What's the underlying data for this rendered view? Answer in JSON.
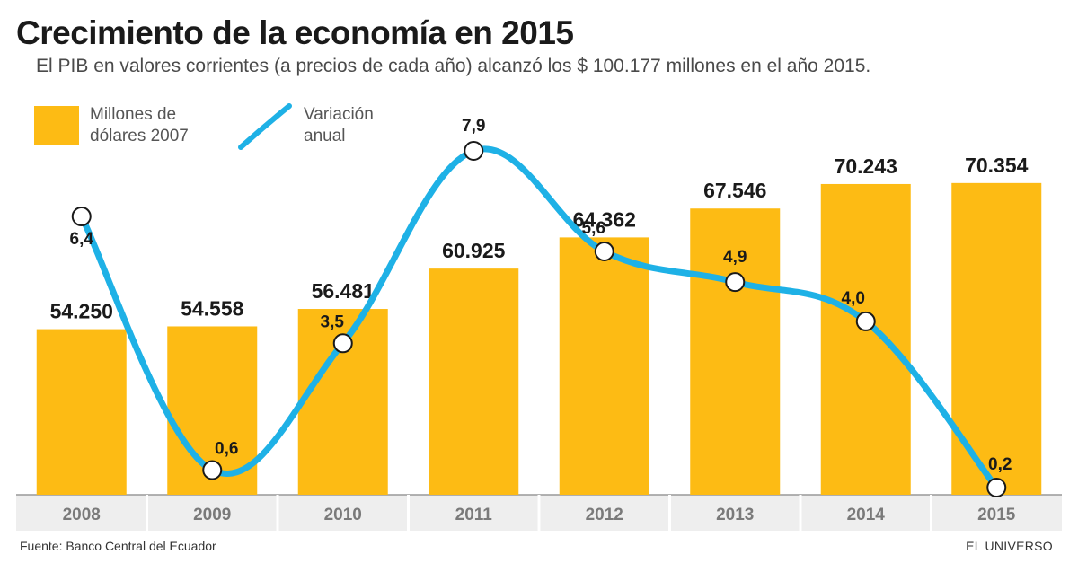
{
  "title": "Crecimiento de la economía en 2015",
  "subtitle": "El PIB en valores corrientes (a precios de cada año) alcanzó los $ 100.177 millones en el año 2015.",
  "legend": {
    "bars": "Millones de\ndólares 2007",
    "line": "Variación\nanual"
  },
  "footer": {
    "source": "Fuente: Banco Central del Ecuador",
    "brand": "EL UNIVERSO"
  },
  "colors": {
    "bar": "#FDBB14",
    "line": "#1EB1E6",
    "axis_band": "#eeeeee"
  },
  "chart_data": {
    "type": "bar",
    "categories": [
      "2008",
      "2009",
      "2010",
      "2011",
      "2012",
      "2013",
      "2014",
      "2015"
    ],
    "series": [
      {
        "name": "Millones de dólares 2007",
        "type": "bar",
        "values": [
          54250,
          54558,
          56481,
          60925,
          64362,
          67546,
          70243,
          70354
        ],
        "labels": [
          "54.250",
          "54.558",
          "56.481",
          "60.925",
          "64.362",
          "67.546",
          "70.243",
          "70.354"
        ]
      },
      {
        "name": "Variación anual",
        "type": "line",
        "values": [
          6.4,
          0.6,
          3.5,
          7.9,
          5.6,
          4.9,
          4.0,
          0.2
        ],
        "labels": [
          "6,4",
          "0,6",
          "3,5",
          "7,9",
          "5,6",
          "4,9",
          "4,0",
          "0,2"
        ]
      }
    ],
    "bar_ylim": [
      0,
      74000
    ],
    "line_ylim": [
      0,
      8.5
    ],
    "grid": false,
    "legend_position": "top-left"
  }
}
